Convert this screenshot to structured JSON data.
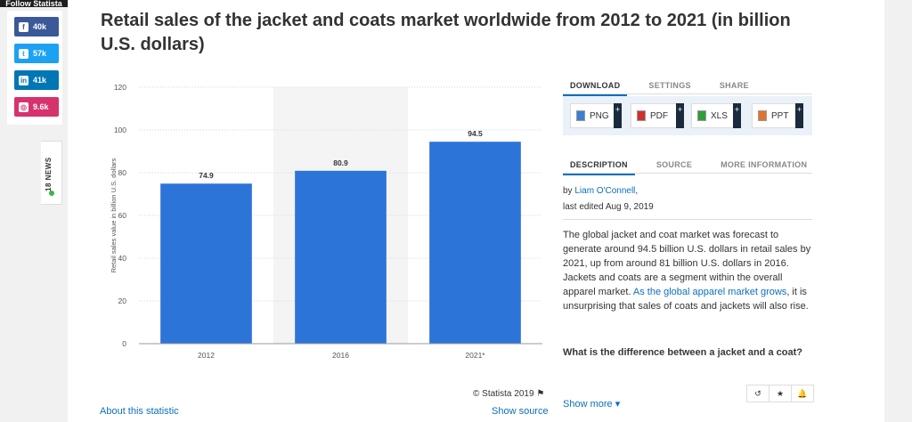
{
  "follow_label": "Follow Statista",
  "social": [
    {
      "network": "facebook",
      "icon": "facebook-icon",
      "glyph": "f",
      "count": "40k",
      "color": "#3b5998"
    },
    {
      "network": "twitter",
      "icon": "twitter-icon",
      "glyph": "t",
      "count": "57k",
      "color": "#1da1f2"
    },
    {
      "network": "linkedin",
      "icon": "linkedin-icon",
      "glyph": "in",
      "count": "41k",
      "color": "#0077b5"
    },
    {
      "network": "instagram",
      "icon": "instagram-icon",
      "glyph": "◎",
      "count": "9.6k",
      "color": "#d6336c"
    }
  ],
  "news_tab": "18 NEWS",
  "title": "Retail sales of the jacket and coats market worldwide from 2012 to 2021 (in billion U.S. dollars)",
  "chart_data": {
    "type": "bar",
    "categories": [
      "2012",
      "2016",
      "2021*"
    ],
    "values": [
      74.9,
      80.9,
      94.5
    ],
    "value_labels": [
      "74.9",
      "80.9",
      "94.5"
    ],
    "ylabel": "Retail sales value in billion U.S. dollars",
    "ylim": [
      0,
      120
    ],
    "yticks": [
      0,
      20,
      40,
      60,
      80,
      100,
      120
    ],
    "grid": true,
    "highlight_category": "2016",
    "bar_color": "#2d74d9"
  },
  "copyright": "© Statista 2019",
  "about_link": "About this statistic",
  "source_link": "Show source",
  "download_tabs": [
    "DOWNLOAD",
    "SETTINGS",
    "SHARE"
  ],
  "download_buttons": [
    {
      "label": "PNG",
      "icon": "png-file-icon",
      "color": "#3a7fd0"
    },
    {
      "label": "PDF",
      "icon": "pdf-file-icon",
      "color": "#d0322b"
    },
    {
      "label": "XLS",
      "icon": "xls-file-icon",
      "color": "#2e9d3a"
    },
    {
      "label": "PPT",
      "icon": "ppt-file-icon",
      "color": "#e0742a"
    }
  ],
  "plus_glyph": "+",
  "info_tabs": [
    "DESCRIPTION",
    "SOURCE",
    "MORE INFORMATION"
  ],
  "byline_prefix": "by ",
  "author": "Liam O'Connell",
  "byline_suffix": ",",
  "last_edited": "last edited Aug 9, 2019",
  "description_part1": "The global jacket and coat market was forecast to generate around 94.5 billion U.S. dollars in retail sales by 2021, up from around 81 billion U.S. dollars in 2016. Jackets and coats are a segment within the overall apparel market. ",
  "description_link": "As the global apparel market grows",
  "description_part2": ", it is unsurprising that sales of coats and jackets will also rise.",
  "question": "What is the difference between a jacket and a coat?",
  "show_more": "Show more",
  "tool_icons": [
    {
      "icon": "history-icon",
      "glyph": "↺"
    },
    {
      "icon": "star-icon",
      "glyph": "★"
    },
    {
      "icon": "bell-icon",
      "glyph": "🔔"
    }
  ]
}
